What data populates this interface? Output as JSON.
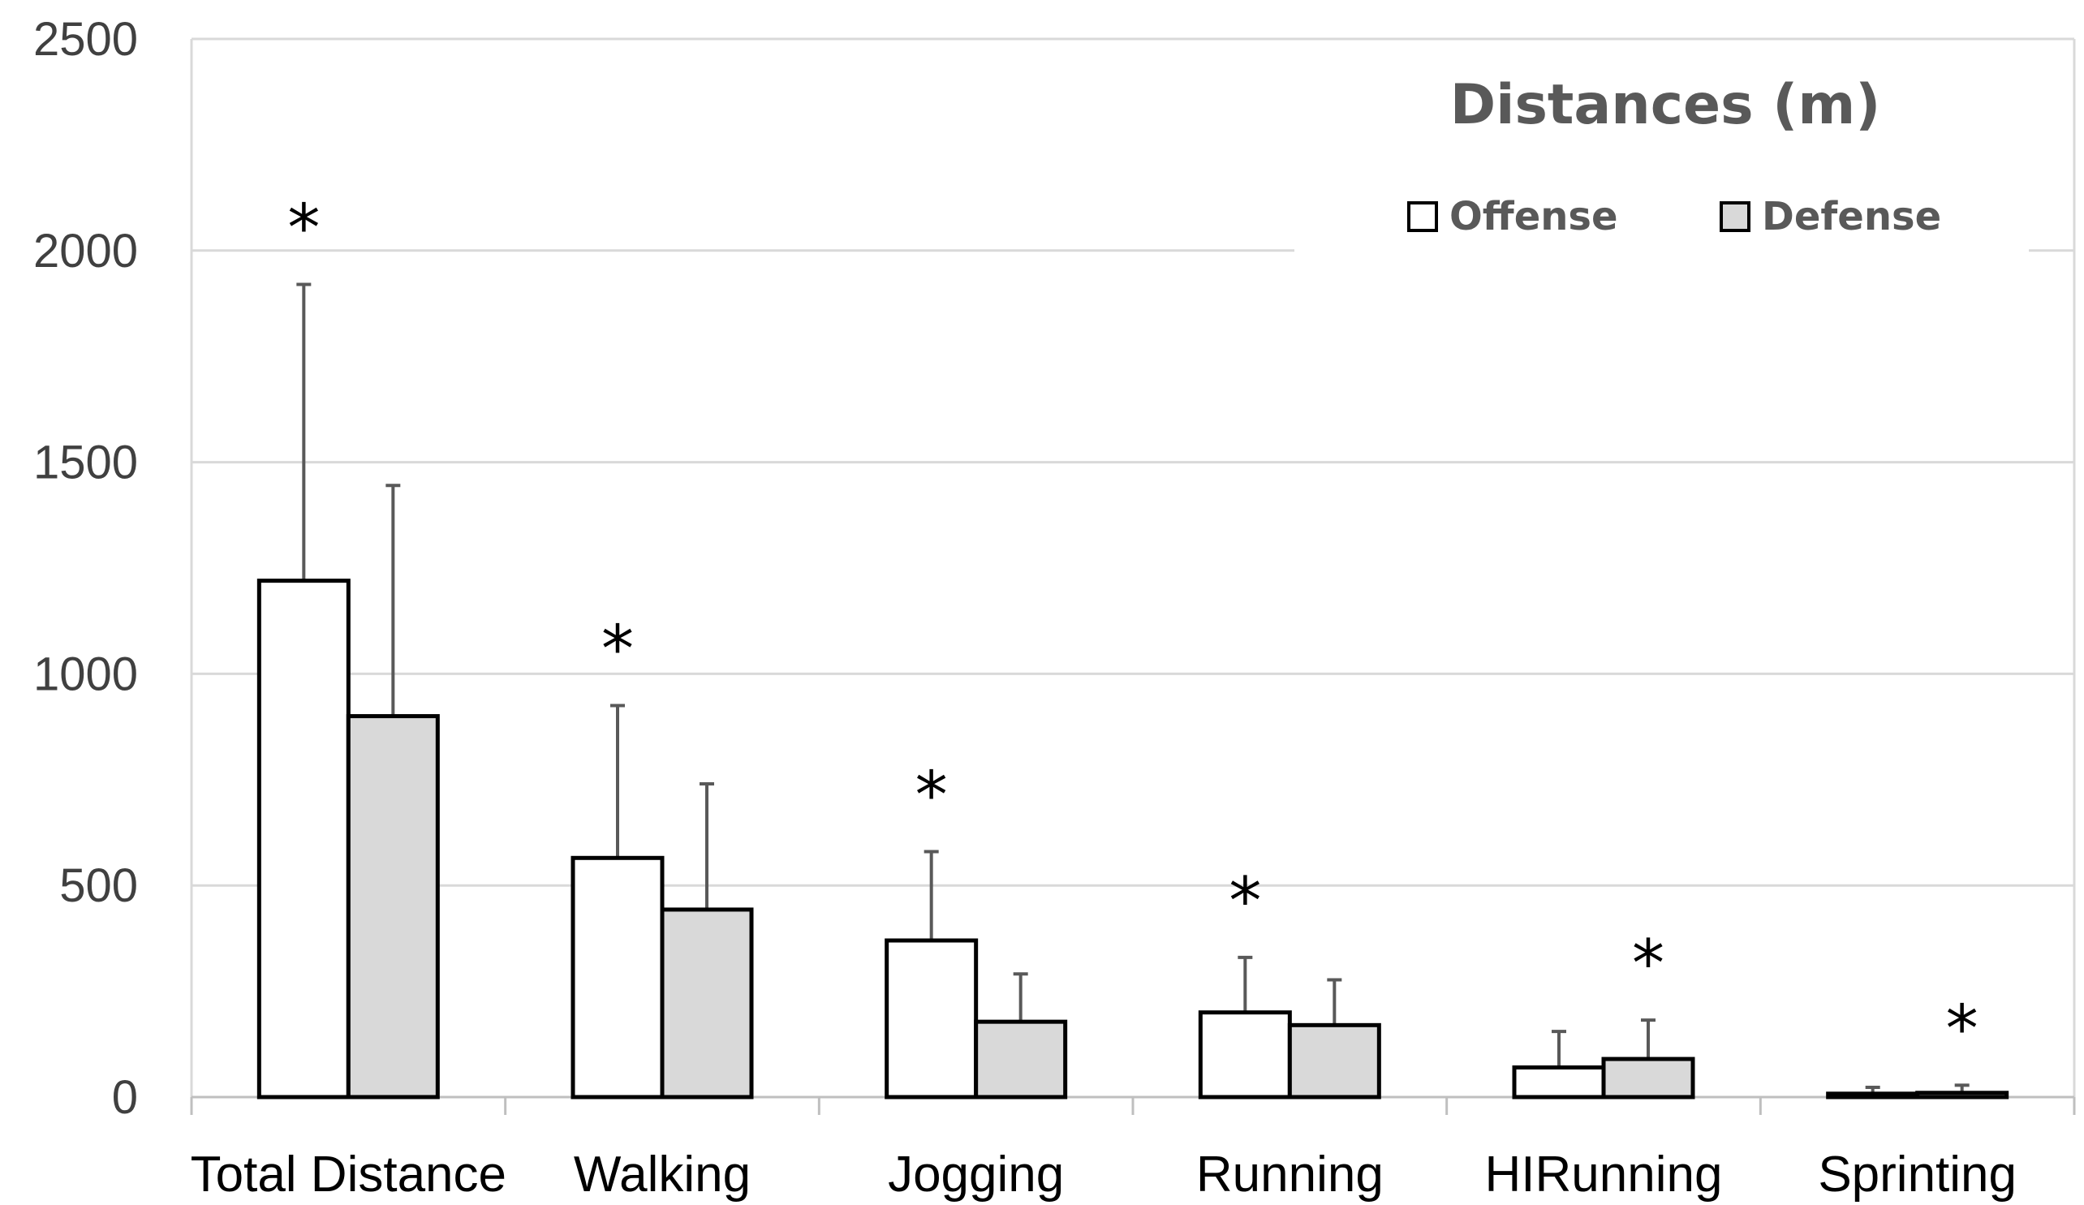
{
  "chart_data": {
    "type": "bar",
    "title": "Distances (m)",
    "categories": [
      "Total Distance",
      "Walking",
      "Jogging",
      "Running",
      "HIRunning",
      "Sprinting"
    ],
    "ylim": [
      0,
      2500
    ],
    "yticks": [
      0,
      500,
      1000,
      1500,
      2000,
      2500
    ],
    "grid": true,
    "legend_position": "top-right",
    "series": [
      {
        "name": "Offense",
        "color": "#ffffff",
        "values": [
          1220,
          565,
          370,
          200,
          70,
          8
        ],
        "errors": [
          700,
          360,
          210,
          130,
          85,
          15
        ]
      },
      {
        "name": "Defense",
        "color": "#d9d9d9",
        "values": [
          900,
          443,
          178,
          170,
          90,
          10
        ],
        "errors": [
          545,
          297,
          113,
          107,
          92,
          18
        ]
      }
    ],
    "annotations": [
      {
        "category": "Total Distance",
        "series": "Offense",
        "text": "*"
      },
      {
        "category": "Walking",
        "series": "Offense",
        "text": "*"
      },
      {
        "category": "Jogging",
        "series": "Offense",
        "text": "*"
      },
      {
        "category": "Running",
        "series": "Offense",
        "text": "*"
      },
      {
        "category": "HIRunning",
        "series": "Defense",
        "text": "*"
      },
      {
        "category": "Sprinting",
        "series": "Defense",
        "text": "*"
      }
    ]
  }
}
